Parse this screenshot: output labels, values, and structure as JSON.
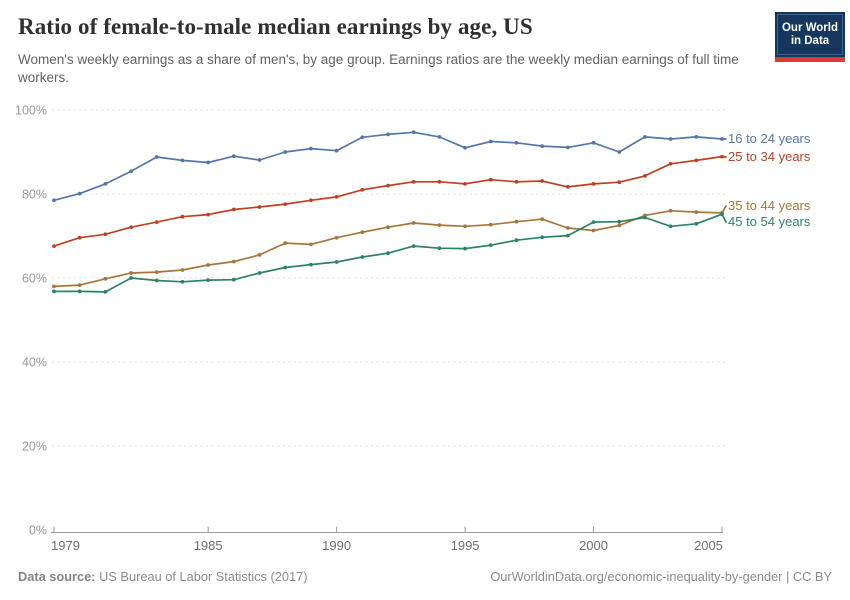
{
  "header": {
    "title": "Ratio of female-to-male median earnings by age, US",
    "subtitle": "Women's weekly earnings as a share of men's, by age group. Earnings ratios are the weekly median earnings of full time workers.",
    "logo": {
      "line1": "Our World",
      "line2": "in Data",
      "bg_color": "#15365d",
      "accent_color": "#d93b33"
    }
  },
  "chart_data": {
    "type": "line",
    "title": "Ratio of female-to-male median earnings by age, US",
    "xlabel": "",
    "ylabel": "",
    "xlim": [
      1979,
      2005
    ],
    "ylim": [
      0,
      100
    ],
    "grid": "horizontal dashed",
    "legend_position": "right end-of-line colored labels",
    "x": [
      1979,
      1980,
      1981,
      1982,
      1983,
      1984,
      1985,
      1986,
      1987,
      1988,
      1989,
      1990,
      1991,
      1992,
      1993,
      1994,
      1995,
      1996,
      1997,
      1998,
      1999,
      2000,
      2001,
      2002,
      2003,
      2004,
      2005
    ],
    "x_ticks": [
      "1979",
      "1985",
      "1990",
      "1995",
      "2000",
      "2005"
    ],
    "x_tick_years": [
      1979,
      1985,
      1990,
      1995,
      2000,
      2005
    ],
    "y_ticks": [
      0,
      20,
      40,
      60,
      80,
      100
    ],
    "y_tick_suffix": "%",
    "series": [
      {
        "name": "16 to 24 years",
        "color": "#5676ab",
        "values": [
          78.5,
          80.1,
          82.4,
          85.4,
          88.8,
          88.0,
          87.5,
          89.0,
          88.1,
          90.0,
          90.8,
          90.3,
          93.5,
          94.2,
          94.7,
          93.6,
          91.0,
          92.5,
          92.2,
          91.4,
          91.1,
          92.2,
          90.0,
          93.6,
          93.1,
          93.6,
          93.1
        ]
      },
      {
        "name": "25 to 34 years",
        "color": "#bf4123",
        "values": [
          67.6,
          69.6,
          70.4,
          72.1,
          73.3,
          74.6,
          75.1,
          76.3,
          76.9,
          77.6,
          78.5,
          79.3,
          81.0,
          82.0,
          82.9,
          82.9,
          82.4,
          83.4,
          82.9,
          83.1,
          81.7,
          82.4,
          82.8,
          84.3,
          87.2,
          88.0,
          88.9
        ]
      },
      {
        "name": "35 to 44 years",
        "color": "#a8763d",
        "values": [
          58.0,
          58.3,
          59.8,
          61.2,
          61.4,
          61.9,
          63.1,
          63.9,
          65.5,
          68.3,
          68.0,
          69.6,
          70.9,
          72.1,
          73.1,
          72.6,
          72.3,
          72.7,
          73.4,
          74.0,
          71.9,
          71.3,
          72.5,
          74.9,
          76.0,
          75.7,
          75.5
        ]
      },
      {
        "name": "45 to 54 years",
        "color": "#2d8465",
        "values": [
          56.8,
          56.8,
          56.7,
          60.0,
          59.4,
          59.1,
          59.5,
          59.6,
          61.2,
          62.5,
          63.2,
          63.8,
          65.0,
          65.9,
          67.6,
          67.1,
          67.0,
          67.8,
          69.0,
          69.7,
          70.1,
          73.3,
          73.4,
          74.4,
          72.3,
          72.9,
          75.2
        ]
      }
    ]
  },
  "footer": {
    "source_label": "Data source:",
    "source_text": "US Bureau of Labor Statistics (2017)",
    "credit": "OurWorldinData.org/economic-inequality-by-gender | CC BY"
  }
}
